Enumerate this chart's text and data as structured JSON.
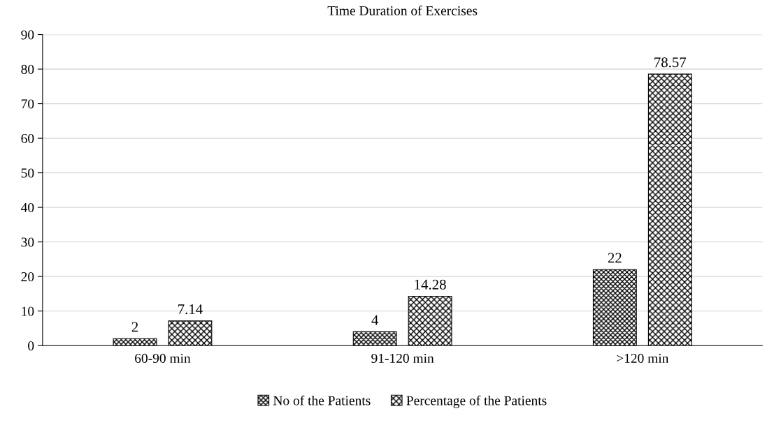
{
  "chart_data": {
    "type": "bar",
    "title": "Time Duration of Exercises",
    "categories": [
      "60-90 min",
      "91-120 min",
      ">120 min"
    ],
    "series": [
      {
        "name": "No of the Patients",
        "color": "#000000",
        "values": [
          2,
          4,
          22
        ]
      },
      {
        "name": "Percentage of the Patients",
        "color": "#000000",
        "values": [
          7.14,
          14.28,
          78.57
        ]
      }
    ],
    "ylim": [
      0,
      90
    ],
    "yticks": [
      0,
      10,
      20,
      30,
      40,
      50,
      60,
      70,
      80,
      90
    ],
    "grid": "y",
    "legend": "bottom",
    "data_labels": true
  }
}
